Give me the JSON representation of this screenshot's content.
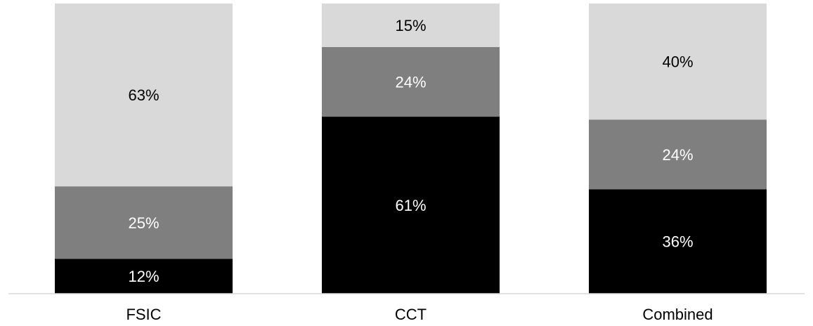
{
  "chart_data": {
    "type": "bar",
    "stacked": true,
    "title": "",
    "xlabel": "",
    "ylabel": "",
    "ylim": [
      0,
      100
    ],
    "grid": false,
    "legend": "none",
    "categories": [
      "FSIC",
      "CCT",
      "Combined"
    ],
    "series": [
      {
        "color": "#000000",
        "label_color": "#ffffff",
        "values": [
          12,
          61,
          36
        ],
        "labels": [
          "12%",
          "61%",
          "36%"
        ]
      },
      {
        "color": "#7f7f7f",
        "label_color": "#ffffff",
        "values": [
          25,
          24,
          24
        ],
        "labels": [
          "25%",
          "24%",
          "24%"
        ]
      },
      {
        "color": "#d9d9d9",
        "label_color": "#000000",
        "values": [
          63,
          15,
          40
        ],
        "labels": [
          "63%",
          "15%",
          "40%"
        ]
      }
    ],
    "axis_color": "#d9d9d9"
  }
}
